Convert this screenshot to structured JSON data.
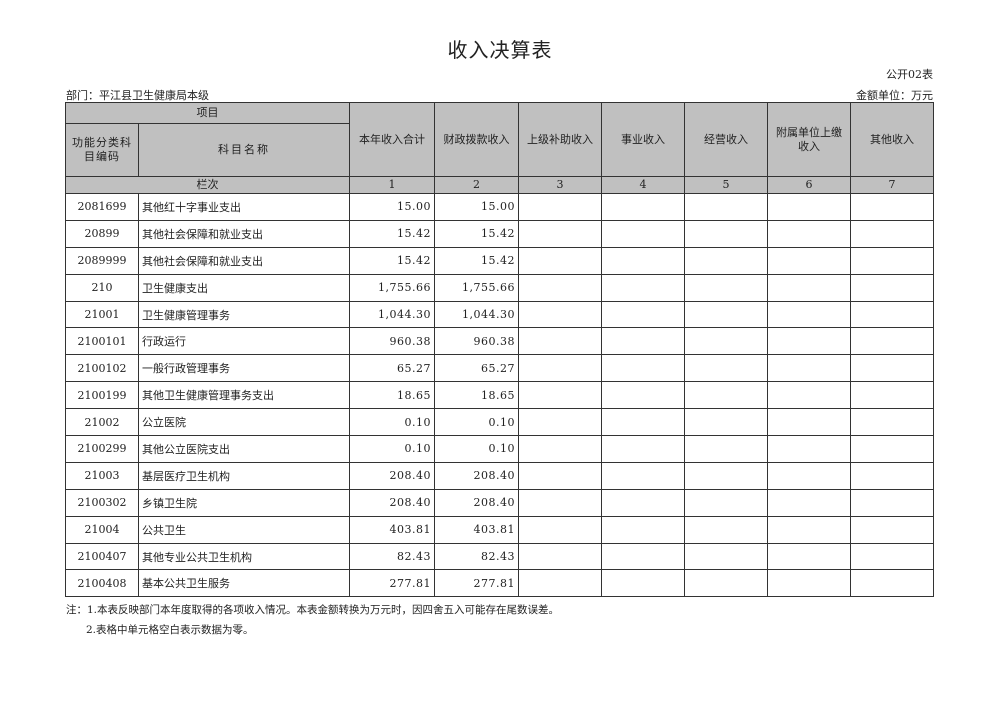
{
  "title": "收入决算表",
  "form_no": "公开02表",
  "department": "部门：平江县卫生健康局本级",
  "unit": "金额单位：万元",
  "header": {
    "project": "项目",
    "code": "功能分类科目编码",
    "name": "科目名称",
    "columns": [
      "本年收入合计",
      "财政拨款收入",
      "上级补助收入",
      "事业收入",
      "经营收入",
      "附属单位上缴收入",
      "其他收入"
    ],
    "row_label": "栏次",
    "column_numbers": [
      "1",
      "2",
      "3",
      "4",
      "5",
      "6",
      "7"
    ]
  },
  "rows": [
    {
      "code": "2081699",
      "name": "其他红十字事业支出",
      "values": [
        "15.00",
        "15.00",
        "",
        "",
        "",
        "",
        ""
      ]
    },
    {
      "code": "20899",
      "name": "其他社会保障和就业支出",
      "values": [
        "15.42",
        "15.42",
        "",
        "",
        "",
        "",
        ""
      ]
    },
    {
      "code": "2089999",
      "name": "其他社会保障和就业支出",
      "values": [
        "15.42",
        "15.42",
        "",
        "",
        "",
        "",
        ""
      ]
    },
    {
      "code": "210",
      "name": "卫生健康支出",
      "values": [
        "1,755.66",
        "1,755.66",
        "",
        "",
        "",
        "",
        ""
      ]
    },
    {
      "code": "21001",
      "name": "卫生健康管理事务",
      "values": [
        "1,044.30",
        "1,044.30",
        "",
        "",
        "",
        "",
        ""
      ]
    },
    {
      "code": "2100101",
      "name": "行政运行",
      "values": [
        "960.38",
        "960.38",
        "",
        "",
        "",
        "",
        ""
      ]
    },
    {
      "code": "2100102",
      "name": "一般行政管理事务",
      "values": [
        "65.27",
        "65.27",
        "",
        "",
        "",
        "",
        ""
      ]
    },
    {
      "code": "2100199",
      "name": "其他卫生健康管理事务支出",
      "values": [
        "18.65",
        "18.65",
        "",
        "",
        "",
        "",
        ""
      ]
    },
    {
      "code": "21002",
      "name": "公立医院",
      "values": [
        "0.10",
        "0.10",
        "",
        "",
        "",
        "",
        ""
      ]
    },
    {
      "code": "2100299",
      "name": "其他公立医院支出",
      "values": [
        "0.10",
        "0.10",
        "",
        "",
        "",
        "",
        ""
      ]
    },
    {
      "code": "21003",
      "name": "基层医疗卫生机构",
      "values": [
        "208.40",
        "208.40",
        "",
        "",
        "",
        "",
        ""
      ]
    },
    {
      "code": "2100302",
      "name": "乡镇卫生院",
      "values": [
        "208.40",
        "208.40",
        "",
        "",
        "",
        "",
        ""
      ]
    },
    {
      "code": "21004",
      "name": "公共卫生",
      "values": [
        "403.81",
        "403.81",
        "",
        "",
        "",
        "",
        ""
      ]
    },
    {
      "code": "2100407",
      "name": "其他专业公共卫生机构",
      "values": [
        "82.43",
        "82.43",
        "",
        "",
        "",
        "",
        ""
      ]
    },
    {
      "code": "2100408",
      "name": "基本公共卫生服务",
      "values": [
        "277.81",
        "277.81",
        "",
        "",
        "",
        "",
        ""
      ]
    }
  ],
  "notes": [
    "注：1.本表反映部门本年度取得的各项收入情况。本表金额转换为万元时，因四舍五入可能存在尾数误差。",
    "2.表格中单元格空白表示数据为零。"
  ],
  "colors": {
    "header_bg": "#c0c0c0",
    "border": "#333333"
  }
}
